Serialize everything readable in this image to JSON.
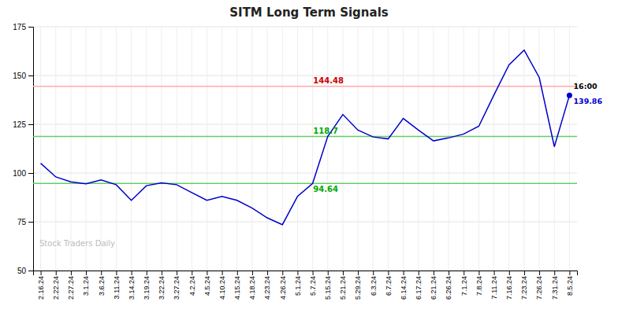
{
  "chart_data": {
    "type": "line",
    "title": "SITM Long Term Signals",
    "categories": [
      "2.16.24",
      "2.22.24",
      "2.27.24",
      "3.1.24",
      "3.6.24",
      "3.11.24",
      "3.14.24",
      "3.19.24",
      "3.22.24",
      "3.27.24",
      "4.2.24",
      "4.5.24",
      "4.10.24",
      "4.15.24",
      "4.18.24",
      "4.23.24",
      "4.26.24",
      "5.1.24",
      "5.7.24",
      "5.15.24",
      "5.21.24",
      "5.29.24",
      "6.3.24",
      "6.7.24",
      "6.14.24",
      "6.17.24",
      "6.21.24",
      "6.26.24",
      "7.1.24",
      "7.8.24",
      "7.11.24",
      "7.16.24",
      "7.23.24",
      "7.26.24",
      "7.31.24",
      "8.5.24"
    ],
    "values": [
      105.0,
      98.0,
      95.5,
      94.5,
      96.5,
      94.0,
      86.0,
      93.5,
      95.0,
      94.0,
      90.0,
      86.0,
      88.0,
      86.0,
      82.0,
      77.0,
      73.5,
      88.0,
      94.64,
      118.7,
      130.0,
      122.0,
      118.5,
      117.5,
      128.0,
      122.0,
      116.5,
      118.0,
      120.0,
      124.0,
      140.0,
      155.5,
      163.0,
      149.0,
      113.5,
      139.86
    ],
    "color": "#0000cc",
    "reference_lines": [
      {
        "value": 144.48,
        "color": "#ffaaaa",
        "label_color": "#cc0000"
      },
      {
        "value": 118.7,
        "color": "#66cc66",
        "label_color": "#00aa00"
      },
      {
        "value": 94.64,
        "color": "#66cc66",
        "label_color": "#00aa00"
      }
    ],
    "annotations": [
      {
        "text": "16:00",
        "x": "8.5.24",
        "color": "#000000"
      },
      {
        "text": "139.86",
        "x": "8.5.24",
        "color": "#0000cc"
      },
      {
        "text": "Stock Traders Daily",
        "color": "#bbbbbb"
      }
    ],
    "ylim": [
      50,
      175
    ],
    "yticks": [
      50,
      75,
      100,
      125,
      150,
      175
    ],
    "grid": true
  }
}
